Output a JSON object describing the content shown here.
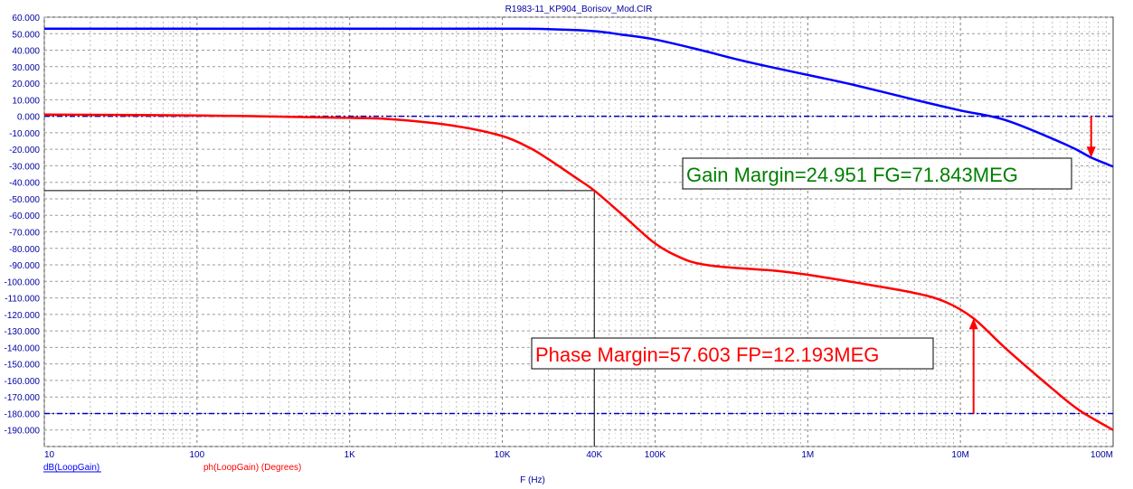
{
  "window": {
    "title": "R1983-11_KP904_Borisov_Mod.CIR"
  },
  "chart_data": {
    "type": "line",
    "title": "R1983-11_KP904_Borisov_Mod.CIR",
    "xlabel": "F (Hz)",
    "xscale": "log",
    "xlim": [
      10,
      100000000
    ],
    "ylim": [
      -200,
      60
    ],
    "grid": true,
    "x_ticks": [
      {
        "value": 10,
        "label": "10"
      },
      {
        "value": 100,
        "label": "100"
      },
      {
        "value": 1000,
        "label": "1K"
      },
      {
        "value": 10000,
        "label": "10K"
      },
      {
        "value": 40000,
        "label": "40K"
      },
      {
        "value": 100000,
        "label": "100K"
      },
      {
        "value": 1000000,
        "label": "1M"
      },
      {
        "value": 10000000,
        "label": "10M"
      },
      {
        "value": 100000000,
        "label": "100M"
      }
    ],
    "y_ticks": [
      {
        "value": 60,
        "label": "60.000"
      },
      {
        "value": 50,
        "label": "50.000"
      },
      {
        "value": 40,
        "label": "40.000"
      },
      {
        "value": 30,
        "label": "30.000"
      },
      {
        "value": 20,
        "label": "20.000"
      },
      {
        "value": 10,
        "label": "10.000"
      },
      {
        "value": 0,
        "label": "0.000"
      },
      {
        "value": -10,
        "label": "-10.000"
      },
      {
        "value": -20,
        "label": "-20.000"
      },
      {
        "value": -30,
        "label": "-30.000"
      },
      {
        "value": -40,
        "label": "-40.000"
      },
      {
        "value": -50,
        "label": "-50.000"
      },
      {
        "value": -60,
        "label": "-60.000"
      },
      {
        "value": -70,
        "label": "-70.000"
      },
      {
        "value": -80,
        "label": "-80.000"
      },
      {
        "value": -90,
        "label": "-90.000"
      },
      {
        "value": -100,
        "label": "-100.000"
      },
      {
        "value": -110,
        "label": "-110.000"
      },
      {
        "value": -120,
        "label": "-120.000"
      },
      {
        "value": -130,
        "label": "-130.000"
      },
      {
        "value": -140,
        "label": "-140.000"
      },
      {
        "value": -150,
        "label": "-150.000"
      },
      {
        "value": -160,
        "label": "-160.000"
      },
      {
        "value": -170,
        "label": "-170.000"
      },
      {
        "value": -180,
        "label": "-180.000"
      },
      {
        "value": -190,
        "label": "-190.000"
      },
      {
        "value": -200,
        "label": ""
      }
    ],
    "series": [
      {
        "name": "dB(LoopGain)",
        "color": "#0000ff",
        "x": [
          10,
          100,
          1000,
          10000,
          20000,
          40000,
          60000,
          100000,
          200000,
          400000,
          1000000,
          2000000,
          5000000,
          10000000,
          20000000,
          50000000,
          71843000,
          100000000
        ],
        "y": [
          53,
          53,
          53,
          53,
          52.8,
          51.5,
          49.5,
          46.5,
          40,
          33,
          25,
          19,
          10,
          3.5,
          -2.5,
          -17.5,
          -25,
          -30.5
        ]
      },
      {
        "name": "ph(LoopGain) (Degrees)",
        "color": "#ff0000",
        "x": [
          10,
          100,
          1000,
          2000,
          5000,
          10000,
          15000,
          20000,
          30000,
          40000,
          60000,
          100000,
          150000,
          200000,
          300000,
          600000,
          1000000,
          2000000,
          5000000,
          8000000,
          12193000,
          20000000,
          40000000,
          60000000,
          100000000
        ],
        "y": [
          1,
          0.5,
          -1,
          -2,
          -6,
          -12,
          -19,
          -26,
          -37,
          -45,
          -59,
          -77,
          -86,
          -89.5,
          -91.5,
          -93.5,
          -96,
          -100.5,
          -107,
          -112.5,
          -122.4,
          -141,
          -165,
          -178,
          -190
        ]
      }
    ],
    "reference_lines": [
      {
        "y": 0,
        "color": "#0000c0",
        "style": "dashed"
      },
      {
        "y": -180,
        "color": "#0000c0",
        "style": "dashed"
      }
    ],
    "cursor": {
      "x": 40000,
      "y": -45
    },
    "markers": [
      {
        "name": "gain-margin-arrow",
        "x": 71843000,
        "from_y": 0,
        "to_y": -25,
        "color": "#ff0000"
      },
      {
        "name": "phase-margin-arrow",
        "x": 12193000,
        "from_y": -180,
        "to_y": -122.4,
        "color": "#ff0000"
      }
    ],
    "annotations": [
      {
        "name": "gain-margin-annotation",
        "text": "Gain Margin=24.951 FG=71.843MEG",
        "color": "#007f00"
      },
      {
        "name": "phase-margin-annotation",
        "text": "Phase Margin=57.603 FP=12.193MEG",
        "color": "#ff0000"
      }
    ],
    "trace_labels": [
      {
        "name": "trace-label-gain",
        "text": "dB(LoopGain)",
        "color": "#0000ff"
      },
      {
        "name": "trace-label-phase",
        "text": "ph(LoopGain) (Degrees)",
        "color": "#ff0000"
      }
    ]
  }
}
